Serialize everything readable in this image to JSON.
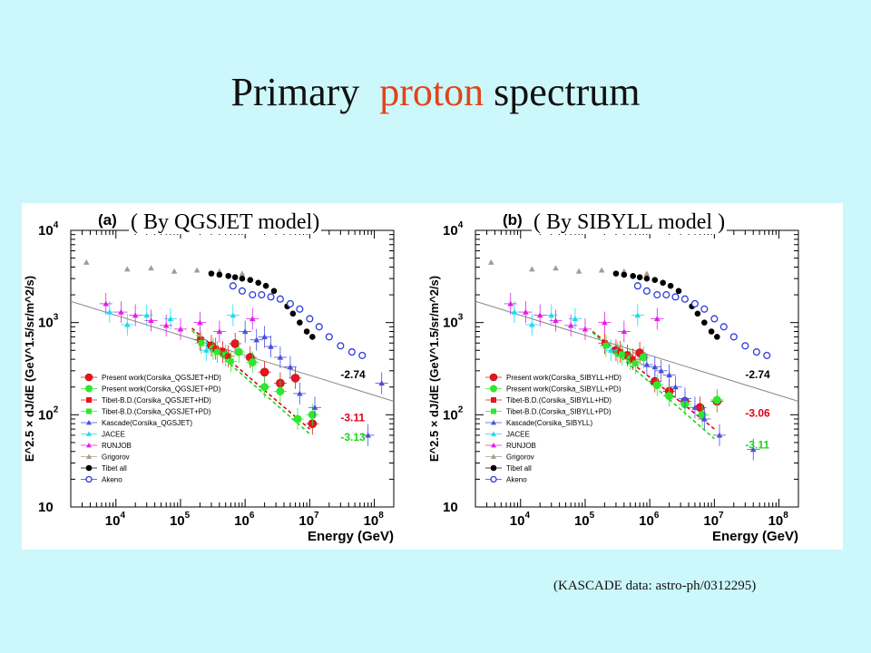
{
  "slide": {
    "title_part1": "Primary",
    "title_accent": "proton",
    "title_part2": "spectrum",
    "footnote": "(KASCADE data:  astro-ph/0312295)",
    "accent_color": "#e0441a",
    "background_color": "#ccf7fb"
  },
  "chart_data": [
    {
      "type": "scatter",
      "panel_label": "(a)",
      "subtitle": "( By QGSJET model)",
      "xlabel": "Energy (GeV)",
      "ylabel": "E^2.5 × dJ/dE (GeV^1.5/sr/m^2/s)",
      "xscale": "log",
      "yscale": "log",
      "xlim": [
        2000,
        200000000
      ],
      "ylim": [
        10,
        10000
      ],
      "xticks": [
        {
          "v": 10000,
          "e": "4"
        },
        {
          "v": 100000,
          "e": "5"
        },
        {
          "v": 1000000,
          "e": "6"
        },
        {
          "v": 10000000,
          "e": "7"
        },
        {
          "v": 100000000,
          "e": "8"
        }
      ],
      "yticks": [
        {
          "v": 10,
          "t": "10"
        },
        {
          "v": 100,
          "t": "10",
          "e": "2"
        },
        {
          "v": 1000,
          "t": "10",
          "e": "3"
        },
        {
          "v": 10000,
          "t": "10",
          "e": "4"
        }
      ],
      "annotations": [
        {
          "text": "-2.74",
          "x": 30000000,
          "y": 250,
          "color": "#000000"
        },
        {
          "text": "-3.11",
          "x": 30000000,
          "y": 85,
          "color": "#e0001a"
        },
        {
          "text": "-3.13",
          "x": 30000000,
          "y": 52,
          "color": "#1ed41e"
        }
      ],
      "fit_lines": [
        {
          "x": [
            2000,
            200000000
          ],
          "y": [
            1700,
            140
          ],
          "color": "#888888",
          "dash": false
        },
        {
          "x": [
            150000,
            10000000
          ],
          "y": [
            870,
            70
          ],
          "color": "#e0001a",
          "dash": true
        },
        {
          "x": [
            150000,
            10000000
          ],
          "y": [
            820,
            62
          ],
          "color": "#1ed41e",
          "dash": true
        }
      ],
      "legend_position": "bottom-left",
      "series": [
        {
          "name": "Present work(Corsika_QGSJET+HD)",
          "marker": "circle",
          "color": "#e8141e",
          "points": [
            [
              300000,
              560
            ],
            [
              450000,
              480
            ],
            [
              700000,
              590
            ],
            [
              1200000,
              420
            ],
            [
              2000000,
              290
            ],
            [
              3500000,
              220
            ],
            [
              6000000,
              250
            ],
            [
              11000000,
              80
            ]
          ]
        },
        {
          "name": "Present work(Corsika_QGSJET+PD)",
          "marker": "circle",
          "color": "#2de82d",
          "points": [
            [
              320000,
              520
            ],
            [
              500000,
              440
            ],
            [
              800000,
              480
            ],
            [
              1300000,
              370
            ],
            [
              2000000,
              200
            ],
            [
              3500000,
              180
            ],
            [
              6500000,
              90
            ],
            [
              11000000,
              100
            ]
          ]
        },
        {
          "name": "Tibet-B.D.(Corsika_QGSJET+HD)",
          "marker": "square",
          "color": "#e8141e",
          "points": [
            [
              200000,
              650
            ],
            [
              350000,
              520
            ],
            [
              550000,
              430
            ]
          ]
        },
        {
          "name": "Tibet-B.D.(Corsika_QGSJET+PD)",
          "marker": "square",
          "color": "#2de82d",
          "points": [
            [
              210000,
              600
            ],
            [
              370000,
              480
            ],
            [
              600000,
              380
            ]
          ]
        },
        {
          "name": "Kascade(Corsika_QGSJET)",
          "marker": "triangle",
          "color": "#4a50dc",
          "points": [
            [
              1000000,
              800
            ],
            [
              1500000,
              650
            ],
            [
              2000000,
              700
            ],
            [
              2500000,
              550
            ],
            [
              3500000,
              420
            ],
            [
              5000000,
              330
            ],
            [
              7000000,
              170
            ],
            [
              12000000,
              120
            ],
            [
              80000000,
              60
            ],
            [
              130000000,
              220
            ]
          ]
        },
        {
          "name": "JACEE",
          "marker": "triangle",
          "color": "#22d8f0",
          "points": [
            [
              8000,
              1300
            ],
            [
              15000,
              950
            ],
            [
              30000,
              1200
            ],
            [
              70000,
              1100
            ],
            [
              250000,
              500
            ],
            [
              650000,
              1200
            ]
          ]
        },
        {
          "name": "RUNJOB",
          "marker": "triangle",
          "color": "#e020e8",
          "points": [
            [
              7000,
              1600
            ],
            [
              12000,
              1300
            ],
            [
              20000,
              1200
            ],
            [
              35000,
              1050
            ],
            [
              60000,
              930
            ],
            [
              100000,
              850
            ],
            [
              200000,
              1000
            ],
            [
              400000,
              800
            ],
            [
              1300000,
              1100
            ]
          ]
        },
        {
          "name": "Grigorov",
          "marker": "triangle",
          "color": "#a89a8a",
          "points": [
            [
              3500,
              4500
            ],
            [
              15000,
              3800
            ],
            [
              35000,
              3900
            ],
            [
              80000,
              3600
            ],
            [
              180000,
              3700
            ],
            [
              400000,
              3600
            ],
            [
              900000,
              3400
            ]
          ]
        },
        {
          "name": "Tibet all",
          "marker": "circle",
          "color": "#000000",
          "points": [
            [
              300000,
              3400
            ],
            [
              400000,
              3300
            ],
            [
              550000,
              3200
            ],
            [
              700000,
              3100
            ],
            [
              900000,
              3000
            ],
            [
              1200000,
              2900
            ],
            [
              1600000,
              2700
            ],
            [
              2100000,
              2500
            ],
            [
              2800000,
              2200
            ],
            [
              3500000,
              1800
            ],
            [
              4500000,
              1500
            ],
            [
              5500000,
              1250
            ],
            [
              7000000,
              1000
            ],
            [
              9000000,
              800
            ],
            [
              11000000,
              700
            ]
          ]
        },
        {
          "name": "Akeno",
          "marker": "circle-open",
          "color": "#2c3cdc",
          "points": [
            [
              650000,
              2500
            ],
            [
              900000,
              2200
            ],
            [
              1300000,
              2000
            ],
            [
              1800000,
              2000
            ],
            [
              2500000,
              1900
            ],
            [
              3500000,
              1800
            ],
            [
              5000000,
              1600
            ],
            [
              7000000,
              1400
            ],
            [
              10000000,
              1100
            ],
            [
              14000000,
              900
            ],
            [
              20000000,
              700
            ],
            [
              30000000,
              560
            ],
            [
              45000000,
              480
            ],
            [
              65000000,
              440
            ]
          ]
        }
      ]
    },
    {
      "type": "scatter",
      "panel_label": "(b)",
      "subtitle": "( By SIBYLL model )",
      "xlabel": "Energy (GeV)",
      "ylabel": "E^2.5 × dJ/dE (GeV^1.5/sr/m^2/s)",
      "xscale": "log",
      "yscale": "log",
      "xlim": [
        2000,
        200000000
      ],
      "ylim": [
        10,
        10000
      ],
      "xticks": [
        {
          "v": 10000,
          "e": "4"
        },
        {
          "v": 100000,
          "e": "5"
        },
        {
          "v": 1000000,
          "e": "6"
        },
        {
          "v": 10000000,
          "e": "7"
        },
        {
          "v": 100000000,
          "e": "8"
        }
      ],
      "yticks": [
        {
          "v": 10,
          "t": "10"
        },
        {
          "v": 100,
          "t": "10",
          "e": "2"
        },
        {
          "v": 1000,
          "t": "10",
          "e": "3"
        },
        {
          "v": 10000,
          "t": "10",
          "e": "4"
        }
      ],
      "annotations": [
        {
          "text": "-2.74",
          "x": 30000000,
          "y": 250,
          "color": "#000000"
        },
        {
          "text": "-3.06",
          "x": 30000000,
          "y": 95,
          "color": "#e0001a"
        },
        {
          "text": "-3.11",
          "x": 30000000,
          "y": 43,
          "color": "#1ed41e"
        }
      ],
      "fit_lines": [
        {
          "x": [
            2000,
            200000000
          ],
          "y": [
            1700,
            140
          ],
          "color": "#888888",
          "dash": false
        },
        {
          "x": [
            130000,
            10000000
          ],
          "y": [
            800,
            70
          ],
          "color": "#e0001a",
          "dash": true
        },
        {
          "x": [
            130000,
            10000000
          ],
          "y": [
            780,
            55
          ],
          "color": "#1ed41e",
          "dash": true
        }
      ],
      "legend_position": "bottom-left",
      "series": [
        {
          "name": "Present work(Corsika_SIBYLL+HD)",
          "marker": "circle",
          "color": "#e8141e",
          "points": [
            [
              300000,
              500
            ],
            [
              450000,
              440
            ],
            [
              700000,
              470
            ],
            [
              1200000,
              230
            ],
            [
              2000000,
              180
            ],
            [
              3500000,
              140
            ],
            [
              6000000,
              120
            ],
            [
              11000000,
              140
            ]
          ]
        },
        {
          "name": "Present work(Corsika_SIBYLL+PD)",
          "marker": "circle",
          "color": "#2de82d",
          "points": [
            [
              320000,
              470
            ],
            [
              500000,
              400
            ],
            [
              800000,
              420
            ],
            [
              1300000,
              210
            ],
            [
              2000000,
              160
            ],
            [
              3500000,
              130
            ],
            [
              6500000,
              100
            ],
            [
              11000000,
              145
            ]
          ]
        },
        {
          "name": "Tibet-B.D.(Corsika_SIBYLL+HD)",
          "marker": "square",
          "color": "#e8141e",
          "points": [
            [
              200000,
              600
            ],
            [
              350000,
              480
            ],
            [
              550000,
              400
            ]
          ]
        },
        {
          "name": "Tibet-B.D.(Corsika_SIBYLL+PD)",
          "marker": "square",
          "color": "#2de82d",
          "points": [
            [
              210000,
              560
            ],
            [
              370000,
              450
            ],
            [
              600000,
              360
            ]
          ]
        },
        {
          "name": "Kascade(Corsika_SIBYLL)",
          "marker": "triangle",
          "color": "#4a50dc",
          "points": [
            [
              900000,
              350
            ],
            [
              1200000,
              330
            ],
            [
              1500000,
              300
            ],
            [
              2000000,
              270
            ],
            [
              2500000,
              200
            ],
            [
              3500000,
              150
            ],
            [
              5000000,
              120
            ],
            [
              7000000,
              90
            ],
            [
              12000000,
              60
            ],
            [
              40000000,
              42
            ]
          ]
        },
        {
          "name": "JACEE",
          "marker": "triangle",
          "color": "#22d8f0",
          "points": [
            [
              8000,
              1300
            ],
            [
              15000,
              950
            ],
            [
              30000,
              1200
            ],
            [
              70000,
              1100
            ],
            [
              250000,
              500
            ],
            [
              650000,
              1200
            ]
          ]
        },
        {
          "name": "RUNJOB",
          "marker": "triangle",
          "color": "#e020e8",
          "points": [
            [
              7000,
              1600
            ],
            [
              12000,
              1300
            ],
            [
              20000,
              1200
            ],
            [
              35000,
              1050
            ],
            [
              60000,
              930
            ],
            [
              100000,
              850
            ],
            [
              200000,
              1000
            ],
            [
              400000,
              800
            ],
            [
              1300000,
              1100
            ]
          ]
        },
        {
          "name": "Grigorov",
          "marker": "triangle",
          "color": "#a89a8a",
          "points": [
            [
              3500,
              4500
            ],
            [
              15000,
              3800
            ],
            [
              35000,
              3900
            ],
            [
              80000,
              3600
            ],
            [
              180000,
              3700
            ],
            [
              400000,
              3600
            ],
            [
              900000,
              3400
            ]
          ]
        },
        {
          "name": "Tibet all",
          "marker": "circle",
          "color": "#000000",
          "points": [
            [
              300000,
              3400
            ],
            [
              400000,
              3300
            ],
            [
              550000,
              3200
            ],
            [
              700000,
              3100
            ],
            [
              900000,
              3000
            ],
            [
              1200000,
              2900
            ],
            [
              1600000,
              2700
            ],
            [
              2100000,
              2500
            ],
            [
              2800000,
              2200
            ],
            [
              3500000,
              1800
            ],
            [
              4500000,
              1500
            ],
            [
              5500000,
              1250
            ],
            [
              7000000,
              1000
            ],
            [
              9000000,
              800
            ],
            [
              11000000,
              700
            ]
          ]
        },
        {
          "name": "Akeno",
          "marker": "circle-open",
          "color": "#2c3cdc",
          "points": [
            [
              650000,
              2500
            ],
            [
              900000,
              2200
            ],
            [
              1300000,
              2000
            ],
            [
              1800000,
              2000
            ],
            [
              2500000,
              1900
            ],
            [
              3500000,
              1800
            ],
            [
              5000000,
              1600
            ],
            [
              7000000,
              1400
            ],
            [
              10000000,
              1100
            ],
            [
              14000000,
              900
            ],
            [
              20000000,
              700
            ],
            [
              30000000,
              560
            ],
            [
              45000000,
              480
            ],
            [
              65000000,
              440
            ]
          ]
        }
      ]
    }
  ]
}
